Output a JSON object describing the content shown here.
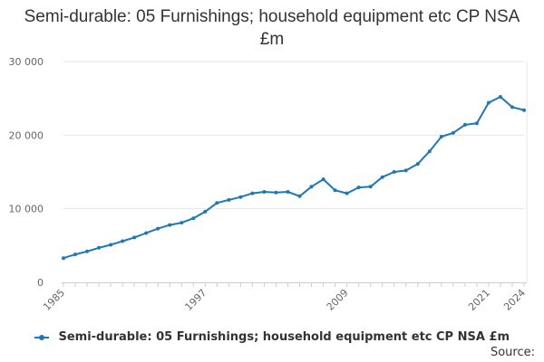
{
  "chart_data": {
    "type": "line",
    "title": "Semi-durable: 05 Furnishings; household equipment etc CP NSA £m",
    "xlabel": "",
    "ylabel": "",
    "ylim": [
      0,
      30000
    ],
    "y_ticks": [
      0,
      10000,
      20000,
      30000
    ],
    "y_tick_labels": [
      "0",
      "10 000",
      "20 000",
      "30 000"
    ],
    "x_tick_labels": [
      "1985",
      "1997",
      "2009",
      "2021",
      "2024"
    ],
    "grid": true,
    "legend_position": "bottom",
    "line_color": "#1f77b4",
    "x": [
      1985,
      1986,
      1987,
      1988,
      1989,
      1990,
      1991,
      1992,
      1993,
      1994,
      1995,
      1996,
      1997,
      1998,
      1999,
      2000,
      2001,
      2002,
      2003,
      2004,
      2005,
      2006,
      2007,
      2008,
      2009,
      2010,
      2011,
      2012,
      2013,
      2014,
      2015,
      2016,
      2017,
      2018,
      2019,
      2020,
      2021,
      2022,
      2023,
      2024
    ],
    "series": [
      {
        "name": "Semi-durable: 05 Furnishings; household equipment etc CP NSA £m",
        "values": [
          3300,
          3800,
          4200,
          4700,
          5100,
          5600,
          6100,
          6700,
          7300,
          7800,
          8100,
          8700,
          9600,
          10800,
          11200,
          11600,
          12100,
          12300,
          12200,
          12300,
          11700,
          13000,
          14000,
          12500,
          12100,
          12900,
          13000,
          14300,
          15000,
          15200,
          16100,
          17800,
          19800,
          20300,
          21400,
          21600,
          24400,
          25200,
          23800,
          23400
        ]
      }
    ]
  },
  "legend": {
    "label": "Semi-durable: 05 Furnishings; household equipment etc CP NSA £m"
  },
  "source_label": "Source:"
}
